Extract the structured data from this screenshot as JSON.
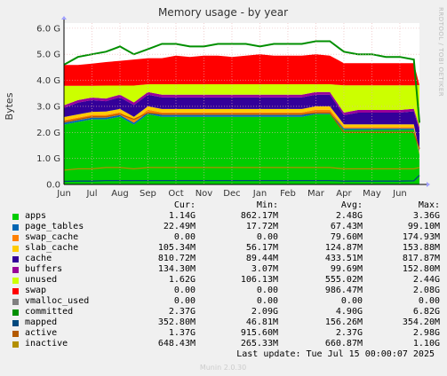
{
  "colors": {
    "background": "#f0f0f0",
    "plot_bg": "#ffffff",
    "grid": "#e8b0b0",
    "axis": "#000000"
  },
  "side_label": "RRDTOOL / TOBI OETIKER",
  "footer": "Munin 2.0.30",
  "last_update": "Last update: Tue Jul 15 00:00:07 2025",
  "legend_header": {
    "cur": "Cur:",
    "min": "Min:",
    "avg": "Avg:",
    "max": "Max:"
  },
  "legend": [
    {
      "name": "apps",
      "color": "#00cc00",
      "cur": "1.14G",
      "min": "862.17M",
      "avg": "2.48G",
      "max": "3.36G"
    },
    {
      "name": "page_tables",
      "color": "#0066b3",
      "cur": "22.49M",
      "min": "17.72M",
      "avg": "67.43M",
      "max": "99.10M"
    },
    {
      "name": "swap_cache",
      "color": "#ff8000",
      "cur": "0.00",
      "min": "0.00",
      "avg": "79.60M",
      "max": "174.93M"
    },
    {
      "name": "slab_cache",
      "color": "#ffcc00",
      "cur": "105.34M",
      "min": "56.17M",
      "avg": "124.87M",
      "max": "153.88M"
    },
    {
      "name": "cache",
      "color": "#330099",
      "cur": "810.72M",
      "min": "89.44M",
      "avg": "433.51M",
      "max": "817.87M"
    },
    {
      "name": "buffers",
      "color": "#990099",
      "cur": "134.30M",
      "min": "3.07M",
      "avg": "99.69M",
      "max": "152.80M"
    },
    {
      "name": "unused",
      "color": "#ccff00",
      "cur": "1.62G",
      "min": "106.13M",
      "avg": "555.02M",
      "max": "2.44G"
    },
    {
      "name": "swap",
      "color": "#ff0000",
      "cur": "0.00",
      "min": "0.00",
      "avg": "986.47M",
      "max": "2.08G"
    },
    {
      "name": "vmalloc_used",
      "color": "#808080",
      "cur": "0.00",
      "min": "0.00",
      "avg": "0.00",
      "max": "0.00"
    },
    {
      "name": "committed",
      "color": "#008f00",
      "cur": "2.37G",
      "min": "2.09G",
      "avg": "4.90G",
      "max": "6.82G"
    },
    {
      "name": "mapped",
      "color": "#00487d",
      "cur": "352.80M",
      "min": "46.81M",
      "avg": "156.26M",
      "max": "354.20M"
    },
    {
      "name": "active",
      "color": "#b35a00",
      "cur": "1.37G",
      "min": "915.60M",
      "avg": "2.37G",
      "max": "2.98G"
    },
    {
      "name": "inactive",
      "color": "#b38f00",
      "cur": "648.43M",
      "min": "265.33M",
      "avg": "660.87M",
      "max": "1.10G"
    }
  ],
  "chart_data": {
    "type": "area",
    "title": "Memory usage - by year",
    "ylabel": "Bytes",
    "ylim": [
      0,
      6.2
    ],
    "yunit": "G",
    "yticks": [
      0,
      1,
      2,
      3,
      4,
      5,
      6
    ],
    "ytick_labels": [
      "0.0",
      "1.0 G",
      "2.0 G",
      "3.0 G",
      "4.0 G",
      "5.0 G",
      "6.0 G"
    ],
    "x_months": [
      "Jun",
      "Jul",
      "Aug",
      "Sep",
      "Oct",
      "Nov",
      "Dec",
      "Jan",
      "Feb",
      "Mar",
      "Apr",
      "May",
      "Jun"
    ],
    "x": [
      0,
      0.5,
      1,
      1.5,
      2,
      2.5,
      3,
      3.5,
      4,
      4.5,
      5,
      5.5,
      6,
      6.5,
      7,
      7.5,
      8,
      8.5,
      9,
      9.5,
      10,
      10.5,
      11,
      11.5,
      12,
      12.5,
      12.7
    ],
    "stacked_series": [
      {
        "name": "apps",
        "color": "#00cc00",
        "values": [
          2.3,
          2.4,
          2.5,
          2.5,
          2.6,
          2.3,
          2.7,
          2.6,
          2.6,
          2.6,
          2.6,
          2.6,
          2.6,
          2.6,
          2.6,
          2.6,
          2.6,
          2.6,
          2.7,
          2.7,
          2.1,
          2.1,
          2.1,
          2.1,
          2.1,
          2.1,
          1.14
        ]
      },
      {
        "name": "page_tables",
        "color": "#0066b3",
        "values": [
          0.07,
          0.07,
          0.07,
          0.07,
          0.07,
          0.07,
          0.07,
          0.07,
          0.07,
          0.07,
          0.07,
          0.07,
          0.07,
          0.07,
          0.07,
          0.07,
          0.07,
          0.07,
          0.07,
          0.07,
          0.05,
          0.05,
          0.05,
          0.05,
          0.05,
          0.05,
          0.02
        ]
      },
      {
        "name": "swap_cache",
        "color": "#ff8000",
        "values": [
          0.1,
          0.1,
          0.1,
          0.1,
          0.1,
          0.1,
          0.1,
          0.1,
          0.1,
          0.1,
          0.1,
          0.1,
          0.1,
          0.1,
          0.1,
          0.1,
          0.1,
          0.1,
          0.1,
          0.1,
          0.05,
          0.05,
          0.05,
          0.05,
          0.05,
          0.05,
          0
        ]
      },
      {
        "name": "slab_cache",
        "color": "#ffcc00",
        "values": [
          0.12,
          0.12,
          0.12,
          0.13,
          0.13,
          0.13,
          0.13,
          0.13,
          0.13,
          0.13,
          0.13,
          0.13,
          0.13,
          0.13,
          0.13,
          0.13,
          0.13,
          0.13,
          0.13,
          0.13,
          0.11,
          0.11,
          0.11,
          0.11,
          0.11,
          0.11,
          0.1
        ]
      },
      {
        "name": "cache",
        "color": "#330099",
        "values": [
          0.35,
          0.45,
          0.45,
          0.4,
          0.45,
          0.45,
          0.45,
          0.45,
          0.45,
          0.45,
          0.45,
          0.45,
          0.45,
          0.45,
          0.45,
          0.45,
          0.45,
          0.45,
          0.45,
          0.45,
          0.35,
          0.45,
          0.45,
          0.45,
          0.45,
          0.5,
          0.81
        ]
      },
      {
        "name": "buffers",
        "color": "#990099",
        "values": [
          0.1,
          0.1,
          0.1,
          0.1,
          0.1,
          0.1,
          0.1,
          0.1,
          0.1,
          0.1,
          0.1,
          0.1,
          0.1,
          0.1,
          0.1,
          0.1,
          0.1,
          0.1,
          0.1,
          0.1,
          0.1,
          0.1,
          0.1,
          0.1,
          0.1,
          0.1,
          0.13
        ]
      },
      {
        "name": "unused",
        "color": "#ccff00",
        "values": [
          0.75,
          0.55,
          0.45,
          0.5,
          0.35,
          0.65,
          0.3,
          0.4,
          0.4,
          0.4,
          0.4,
          0.4,
          0.4,
          0.4,
          0.4,
          0.4,
          0.4,
          0.4,
          0.3,
          0.3,
          1.05,
          0.95,
          0.95,
          0.95,
          0.95,
          0.9,
          1.62
        ]
      },
      {
        "name": "swap",
        "color": "#ff0000",
        "values": [
          0.8,
          0.8,
          0.85,
          0.9,
          0.95,
          1.0,
          1.0,
          1.0,
          1.1,
          1.05,
          1.1,
          1.1,
          1.05,
          1.1,
          1.15,
          1.1,
          1.1,
          1.1,
          1.15,
          1.1,
          0.85,
          0.85,
          0.85,
          0.85,
          0.85,
          0.85,
          0
        ]
      },
      {
        "name": "vmalloc_used",
        "color": "#808080",
        "values": [
          0,
          0,
          0,
          0,
          0,
          0,
          0,
          0,
          0,
          0,
          0,
          0,
          0,
          0,
          0,
          0,
          0,
          0,
          0,
          0,
          0,
          0,
          0,
          0,
          0,
          0,
          0
        ]
      }
    ],
    "line_series": [
      {
        "name": "committed",
        "color": "#008f00",
        "values": [
          4.6,
          4.9,
          5.0,
          5.1,
          5.3,
          5.0,
          5.2,
          5.4,
          5.4,
          5.3,
          5.3,
          5.4,
          5.4,
          5.4,
          5.3,
          5.4,
          5.4,
          5.4,
          5.5,
          5.5,
          5.1,
          5.0,
          5.0,
          4.9,
          4.9,
          4.8,
          2.37
        ]
      },
      {
        "name": "mapped",
        "color": "#00487d",
        "values": [
          0.12,
          0.13,
          0.13,
          0.15,
          0.15,
          0.15,
          0.15,
          0.15,
          0.15,
          0.15,
          0.15,
          0.15,
          0.15,
          0.15,
          0.15,
          0.15,
          0.15,
          0.15,
          0.15,
          0.15,
          0.13,
          0.13,
          0.13,
          0.13,
          0.13,
          0.14,
          0.35
        ]
      },
      {
        "name": "active",
        "color": "#b35a00",
        "values": [
          2.4,
          2.5,
          2.6,
          2.6,
          2.7,
          2.5,
          2.75,
          2.7,
          2.7,
          2.7,
          2.7,
          2.7,
          2.7,
          2.7,
          2.7,
          2.7,
          2.7,
          2.7,
          2.75,
          2.75,
          2.0,
          2.0,
          2.0,
          2.0,
          2.0,
          2.0,
          1.37
        ]
      },
      {
        "name": "inactive",
        "color": "#b38f00",
        "values": [
          0.55,
          0.6,
          0.6,
          0.65,
          0.65,
          0.6,
          0.65,
          0.65,
          0.65,
          0.65,
          0.65,
          0.65,
          0.65,
          0.65,
          0.65,
          0.65,
          0.65,
          0.65,
          0.65,
          0.65,
          0.6,
          0.6,
          0.6,
          0.6,
          0.6,
          0.6,
          0.65
        ]
      }
    ]
  }
}
